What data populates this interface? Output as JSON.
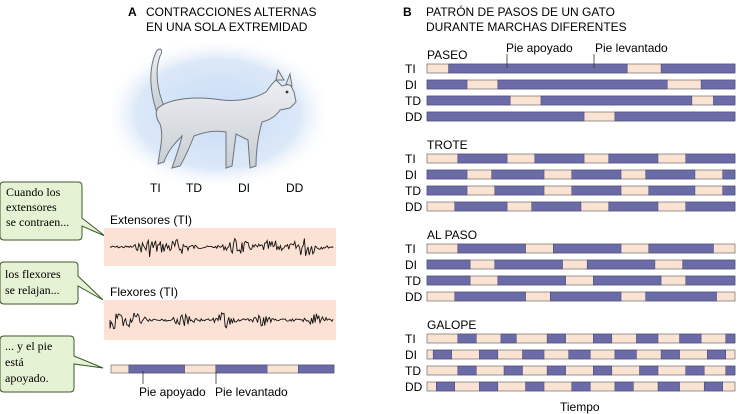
{
  "panel_a": {
    "letter": "A",
    "title_line1": "CONTRACCIONES ALTERNAS",
    "title_line2": "EN UNA SOLA EXTREMIDAD",
    "legs": [
      "TI",
      "TD",
      "DI",
      "DD"
    ],
    "callout1": [
      "Cuando los",
      "extensores",
      "se contraen..."
    ],
    "callout2": [
      "los flexores",
      "se relajan..."
    ],
    "callout3": [
      "... y el pie",
      "está",
      "apoyado."
    ],
    "emg1_label": "Extensores (TI)",
    "emg2_label": "Flexores (TI)",
    "bar_label_stance": "Pie apoyado",
    "bar_label_swing": "Pie levantado",
    "stance_pattern": [
      [
        0.08,
        0.33
      ],
      [
        0.47,
        0.7
      ],
      [
        0.84,
        1.0
      ]
    ]
  },
  "panel_b": {
    "letter": "B",
    "title_line1": "PATRÓN DE PASOS DE UN GATO",
    "title_line2": "DURANTE MARCHAS DIFERENTES",
    "label_stance": "Pie apoyado",
    "label_swing": "Pie levantado",
    "xlabel": "Tiempo",
    "gaits": [
      {
        "name": "PASEO",
        "rows": [
          {
            "leg": "TI",
            "stance": [
              [
                0.07,
                0.65
              ],
              [
                0.76,
                1.0
              ]
            ]
          },
          {
            "leg": "DI",
            "stance": [
              [
                0.0,
                0.13
              ],
              [
                0.23,
                0.78
              ],
              [
                0.89,
                1.0
              ]
            ]
          },
          {
            "leg": "TD",
            "stance": [
              [
                0.0,
                0.27
              ],
              [
                0.37,
                0.86
              ],
              [
                0.93,
                1.0
              ]
            ]
          },
          {
            "leg": "DD",
            "stance": [
              [
                0.0,
                0.51
              ],
              [
                0.61,
                1.0
              ]
            ]
          }
        ]
      },
      {
        "name": "TROTE",
        "rows": [
          {
            "leg": "TI",
            "stance": [
              [
                0.1,
                0.26
              ],
              [
                0.35,
                0.51
              ],
              [
                0.59,
                0.75
              ],
              [
                0.84,
                1.0
              ]
            ]
          },
          {
            "leg": "DI",
            "stance": [
              [
                0.0,
                0.13
              ],
              [
                0.21,
                0.38
              ],
              [
                0.47,
                0.63
              ],
              [
                0.71,
                0.87
              ],
              [
                0.96,
                1.0
              ]
            ]
          },
          {
            "leg": "TD",
            "stance": [
              [
                0.0,
                0.13
              ],
              [
                0.22,
                0.38
              ],
              [
                0.47,
                0.63
              ],
              [
                0.72,
                0.87
              ],
              [
                0.96,
                1.0
              ]
            ]
          },
          {
            "leg": "DD",
            "stance": [
              [
                0.09,
                0.26
              ],
              [
                0.34,
                0.5
              ],
              [
                0.59,
                0.75
              ],
              [
                0.84,
                1.0
              ]
            ]
          }
        ]
      },
      {
        "name": "AL PASO",
        "rows": [
          {
            "leg": "TI",
            "stance": [
              [
                0.1,
                0.32
              ],
              [
                0.41,
                0.63
              ],
              [
                0.72,
                0.93
              ]
            ]
          },
          {
            "leg": "DI",
            "stance": [
              [
                0.0,
                0.14
              ],
              [
                0.22,
                0.44
              ],
              [
                0.52,
                0.74
              ],
              [
                0.83,
                1.0
              ]
            ]
          },
          {
            "leg": "TD",
            "stance": [
              [
                0.0,
                0.14
              ],
              [
                0.23,
                0.45
              ],
              [
                0.54,
                0.76
              ],
              [
                0.84,
                1.0
              ]
            ]
          },
          {
            "leg": "DD",
            "stance": [
              [
                0.09,
                0.32
              ],
              [
                0.4,
                0.63
              ],
              [
                0.71,
                0.94
              ]
            ]
          }
        ]
      },
      {
        "name": "GALOPE",
        "rows": [
          {
            "leg": "TI",
            "stance": [
              [
                0.1,
                0.16
              ],
              [
                0.24,
                0.29
              ],
              [
                0.39,
                0.45
              ],
              [
                0.54,
                0.6
              ],
              [
                0.68,
                0.75
              ],
              [
                0.82,
                0.89
              ],
              [
                0.97,
                1.0
              ]
            ]
          },
          {
            "leg": "DI",
            "stance": [
              [
                0.02,
                0.08
              ],
              [
                0.17,
                0.23
              ],
              [
                0.31,
                0.38
              ],
              [
                0.46,
                0.53
              ],
              [
                0.61,
                0.68
              ],
              [
                0.76,
                0.82
              ],
              [
                0.91,
                0.97
              ]
            ]
          },
          {
            "leg": "TD",
            "stance": [
              [
                0.1,
                0.16
              ],
              [
                0.25,
                0.31
              ],
              [
                0.39,
                0.45
              ],
              [
                0.54,
                0.6
              ],
              [
                0.69,
                0.75
              ],
              [
                0.84,
                0.9
              ],
              [
                0.97,
                1.0
              ]
            ]
          },
          {
            "leg": "DD",
            "stance": [
              [
                0.03,
                0.09
              ],
              [
                0.17,
                0.23
              ],
              [
                0.32,
                0.38
              ],
              [
                0.47,
                0.53
              ],
              [
                0.61,
                0.67
              ],
              [
                0.75,
                0.82
              ],
              [
                0.9,
                0.96
              ]
            ]
          }
        ]
      }
    ]
  },
  "colors": {
    "stance": "#6b6ba8",
    "swing": "#fbe3d3",
    "emg_bg": "#fbe2d4",
    "callout_bg": "#e6f2d4",
    "glow": "#cfe0f7"
  }
}
